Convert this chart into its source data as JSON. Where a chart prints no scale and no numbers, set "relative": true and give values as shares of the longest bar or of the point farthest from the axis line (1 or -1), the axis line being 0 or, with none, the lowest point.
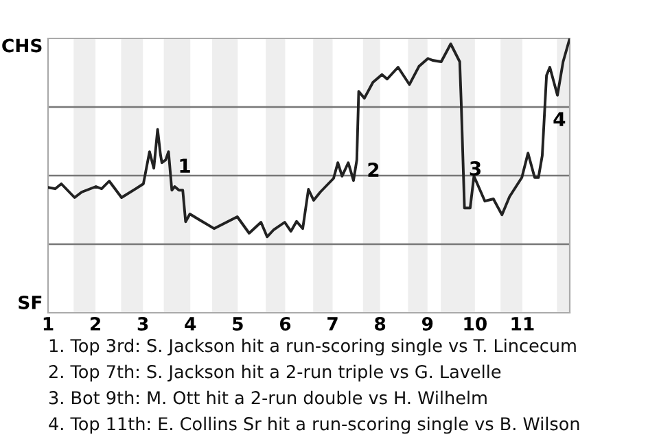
{
  "chart_data": {
    "type": "line",
    "relative": true,
    "x": [
      1.0,
      1.15,
      1.28,
      1.56,
      1.71,
      2.01,
      2.13,
      2.29,
      2.55,
      2.85,
      3.01,
      3.14,
      3.23,
      3.31,
      3.37,
      3.4,
      3.48,
      3.54,
      3.61,
      3.67,
      3.76,
      3.84,
      3.9,
      3.99,
      4.18,
      4.5,
      4.99,
      5.24,
      5.49,
      5.62,
      5.76,
      5.99,
      6.12,
      6.24,
      6.37,
      6.49,
      6.6,
      6.74,
      7.02,
      7.11,
      7.2,
      7.33,
      7.44,
      7.51,
      7.55,
      7.67,
      7.85,
      8.04,
      8.15,
      8.38,
      8.62,
      8.82,
      9.01,
      9.11,
      9.29,
      9.49,
      9.68,
      9.71,
      9.78,
      9.9,
      9.98,
      10.21,
      10.39,
      10.57,
      10.73,
      10.99,
      11.12,
      11.26,
      11.34,
      11.42,
      11.51,
      11.58,
      11.74,
      11.86,
      12.0
    ],
    "series": [
      {
        "color": "#222222",
        "values": [
          0.457,
          0.452,
          0.47,
          0.42,
          0.44,
          0.46,
          0.452,
          0.48,
          0.42,
          0.452,
          0.47,
          0.587,
          0.527,
          0.668,
          0.577,
          0.547,
          0.557,
          0.587,
          0.447,
          0.46,
          0.447,
          0.447,
          0.332,
          0.36,
          0.34,
          0.307,
          0.35,
          0.29,
          0.33,
          0.277,
          0.303,
          0.33,
          0.297,
          0.333,
          0.307,
          0.45,
          0.41,
          0.44,
          0.49,
          0.547,
          0.498,
          0.547,
          0.482,
          0.557,
          0.807,
          0.782,
          0.84,
          0.868,
          0.852,
          0.895,
          0.832,
          0.898,
          0.927,
          0.92,
          0.915,
          0.98,
          0.915,
          0.773,
          0.382,
          0.382,
          0.498,
          0.407,
          0.415,
          0.357,
          0.423,
          0.493,
          0.582,
          0.493,
          0.493,
          0.573,
          0.865,
          0.895,
          0.793,
          0.915,
          1
        ]
      }
    ],
    "xlim": [
      1,
      12
    ],
    "xticks": [
      1,
      2,
      3,
      4,
      5,
      6,
      7,
      8,
      9,
      10,
      11
    ],
    "ref_lines": [
      {
        "axis": "y",
        "value": 0.25,
        "color": "#777777"
      },
      {
        "axis": "y",
        "value": 0.5,
        "color": "#777777"
      },
      {
        "axis": "y",
        "value": 0.75,
        "color": "#777777"
      }
    ],
    "bands": [
      {
        "axis": "x",
        "from": 1.54,
        "to": 2,
        "color": "#eeeeee"
      },
      {
        "axis": "x",
        "from": 2.54,
        "to": 3,
        "color": "#eeeeee"
      },
      {
        "axis": "x",
        "from": 3.44,
        "to": 4,
        "color": "#eeeeee"
      },
      {
        "axis": "x",
        "from": 4.46,
        "to": 5,
        "color": "#eeeeee"
      },
      {
        "axis": "x",
        "from": 5.59,
        "to": 6,
        "color": "#eeeeee"
      },
      {
        "axis": "x",
        "from": 6.59,
        "to": 7,
        "color": "#eeeeee"
      },
      {
        "axis": "x",
        "from": 7.64,
        "to": 8,
        "color": "#eeeeee"
      },
      {
        "axis": "x",
        "from": 8.59,
        "to": 9,
        "color": "#eeeeee"
      },
      {
        "axis": "x",
        "from": 9.28,
        "to": 10,
        "color": "#eeeeee"
      },
      {
        "axis": "x",
        "from": 10.54,
        "to": 11,
        "color": "#eeeeee"
      },
      {
        "axis": "x",
        "from": 11.73,
        "to": 12,
        "color": "#eeeeee"
      }
    ],
    "annotations": [
      "CHS",
      "SF",
      {
        "text": "1",
        "x": 3.62,
        "y": 0.53
      },
      {
        "text": "2",
        "x": 7.6,
        "y": 0.515
      },
      {
        "text": "3",
        "x": 9.75,
        "y": 0.52
      },
      {
        "text": "4",
        "x": 11.52,
        "y": 0.7
      },
      "1. Top 3rd: S. Jackson hit a run-scoring single vs T. Lincecum",
      "2. Top 7th: S. Jackson hit a 2-run triple vs G. Lavelle",
      "3. Bot 9th: M. Ott hit a 2-run double vs H. Wilhelm",
      "4. Top 11th: E. Collins Sr hit a run-scoring single vs B. Wilson"
    ]
  }
}
